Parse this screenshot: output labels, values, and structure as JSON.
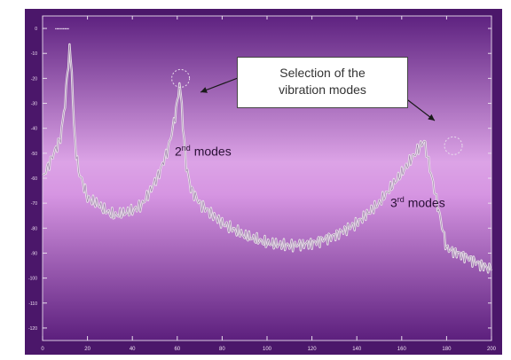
{
  "chart_data": {
    "type": "line",
    "title": "",
    "xlabel": "",
    "ylabel": "",
    "xlim": [
      0,
      200
    ],
    "ylim": [
      -125,
      5
    ],
    "x_ticks": [
      0,
      20,
      40,
      60,
      80,
      100,
      120,
      140,
      160,
      180,
      200
    ],
    "y_ticks": [
      0,
      -10,
      -20,
      -30,
      -40,
      -50,
      -60,
      -70,
      -80,
      -90,
      -100,
      -110,
      -120
    ],
    "grid": false,
    "legend": "none",
    "series": [
      {
        "x": [
          0,
          4,
          8,
          10,
          12,
          13,
          14,
          15,
          16,
          18,
          20,
          24,
          28,
          32,
          36,
          40,
          44,
          48,
          52,
          56,
          58,
          60,
          61,
          62,
          63,
          64,
          66,
          70,
          75,
          80,
          90,
          100,
          110,
          120,
          130,
          140,
          150,
          160,
          170,
          180,
          185,
          190,
          194,
          196,
          197,
          198,
          199,
          200
        ],
        "y": [
          -60,
          -52,
          -44,
          -30,
          -8,
          -17,
          -40,
          -50,
          -57,
          -62,
          -68,
          -70,
          -73,
          -75,
          -74,
          -73,
          -71,
          -65,
          -58,
          -48,
          -40,
          -30,
          -22,
          -31,
          -45,
          -55,
          -64,
          -70,
          -74,
          -78,
          -83,
          -86,
          -87,
          -86,
          -83,
          -78,
          -70,
          -58,
          -45,
          -88,
          -90,
          -92,
          -94,
          -95,
          -95,
          -96,
          -96,
          -97
        ],
        "color": "#e8e0e8"
      }
    ],
    "annotations": [
      {
        "label": "Selection of the vibration modes",
        "type": "callout"
      },
      {
        "label_main": "2",
        "label_sup": "nd",
        "label_rest": " modes"
      },
      {
        "label_main": "3",
        "label_sup": "rd",
        "label_rest": " modes"
      }
    ],
    "colors": {
      "plot_bg_top": "#5a1e7a",
      "plot_bg_mid": "#d99be4",
      "plot_bg_bottom": "#5a1e7a",
      "line": "#ece4ec"
    }
  },
  "labels": {
    "callout_line1": "Selection of the",
    "callout_line2": "vibration modes",
    "mode2_main": "2",
    "mode2_sup": "nd",
    "mode2_rest": " modes",
    "mode3_main": "3",
    "mode3_sup": "rd",
    "mode3_rest": " modes"
  }
}
